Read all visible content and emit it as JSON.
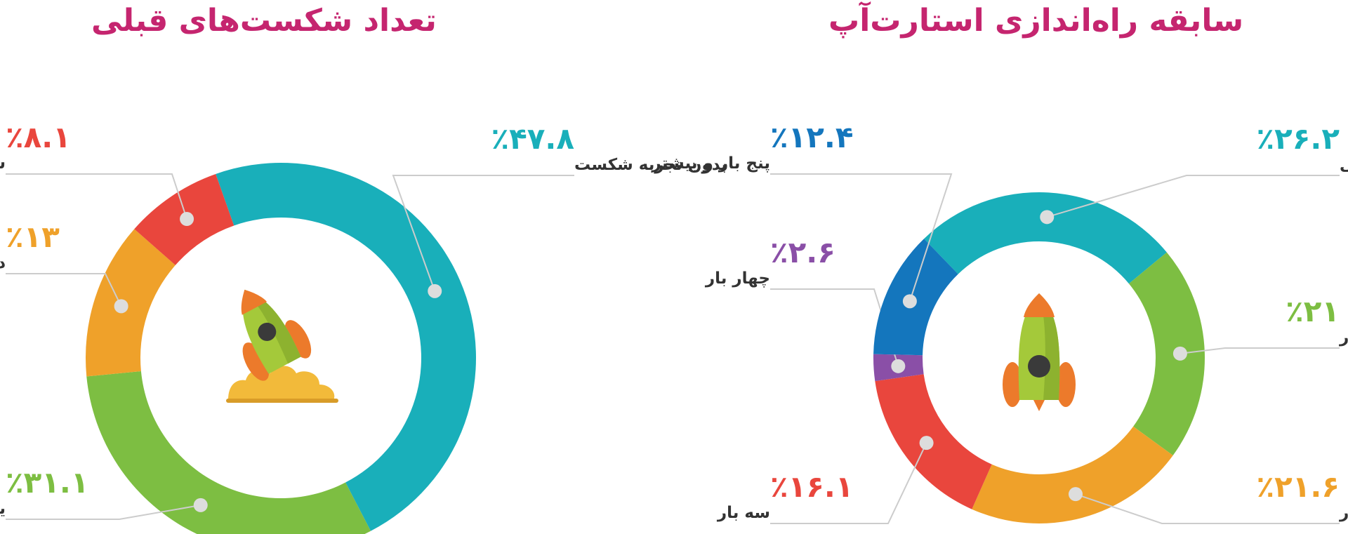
{
  "colors": {
    "teal": "#19AFBA",
    "green": "#7DBE42",
    "orange": "#EFA12A",
    "red": "#E9463D",
    "purple": "#8A4FA7",
    "blue": "#1476BD",
    "title": "#C5256F",
    "label_text": "#333333",
    "leader": "#cccccc",
    "dot": "#dddddd"
  },
  "chart_data": [
    {
      "type": "pie",
      "variant": "donut",
      "title": "تعداد شکست‌های قبلی",
      "unit": "%",
      "slices": [
        {
          "key": "none",
          "label": "بدون تجربه شکست",
          "value": 47.8,
          "display": "٪۴۷.۸",
          "color": "#19AFBA"
        },
        {
          "key": "one",
          "label": "یک بار",
          "value": 31.1,
          "display": "٪۳۱.۱",
          "color": "#7DBE42"
        },
        {
          "key": "two",
          "label": "دو بار",
          "value": 13,
          "display": "٪۱۳",
          "color": "#EFA12A"
        },
        {
          "key": "three-plus",
          "label": "سه بار و بیشتر",
          "value": 8.1,
          "display": "٪۸.۱",
          "color": "#E9463D"
        }
      ],
      "center_icon": "crashed-rocket-icon"
    },
    {
      "type": "pie",
      "variant": "donut",
      "title": "سابقه راه‌اندازی استارت‌آپ",
      "unit": "%",
      "slices": [
        {
          "key": "none",
          "label": "بدون سابقه قبلی",
          "value": 26.2,
          "display": "٪۲۶.۲",
          "color": "#19AFBA"
        },
        {
          "key": "one",
          "label": "یک بار",
          "value": 21,
          "display": "٪۲۱",
          "color": "#7DBE42"
        },
        {
          "key": "two",
          "label": "دو بار",
          "value": 21.6,
          "display": "٪۲۱.۶",
          "color": "#EFA12A"
        },
        {
          "key": "three",
          "label": "سه بار",
          "value": 16.1,
          "display": "٪۱۶.۱",
          "color": "#E9463D"
        },
        {
          "key": "four",
          "label": "چهار بار",
          "value": 2.6,
          "display": "٪۲.۶",
          "color": "#8A4FA7"
        },
        {
          "key": "five-plus",
          "label": "پنج بار و بیشتر",
          "value": 12.4,
          "display": "٪۱۲.۴",
          "color": "#1476BD"
        }
      ],
      "center_icon": "rocket-icon"
    }
  ]
}
